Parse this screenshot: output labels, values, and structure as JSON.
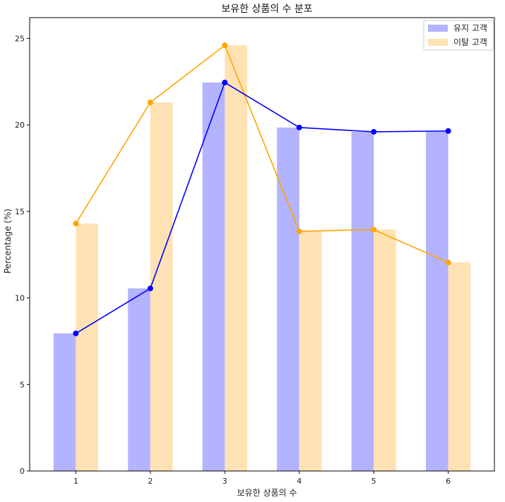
{
  "chart_data": {
    "type": "bar",
    "title": "보유한 상품의 수 분포",
    "xlabel": "보유한 상품의 수",
    "ylabel": "Percentage (%)",
    "categories": [
      "1",
      "2",
      "3",
      "4",
      "5",
      "6"
    ],
    "ylim": [
      0,
      26.2
    ],
    "yticks": [
      0,
      5,
      10,
      15,
      20,
      25
    ],
    "grid": false,
    "legend_position": "top-right",
    "series": [
      {
        "name": "유지 고객",
        "values": [
          7.95,
          10.55,
          22.45,
          19.85,
          19.6,
          19.65
        ],
        "bar_color": "#b3b3ff",
        "line_color": "#0000ff"
      },
      {
        "name": "이탈 고객",
        "values": [
          14.3,
          21.3,
          24.6,
          13.85,
          13.95,
          12.05
        ],
        "bar_color": "#ffe2b3",
        "line_color": "#ffa500"
      }
    ]
  }
}
